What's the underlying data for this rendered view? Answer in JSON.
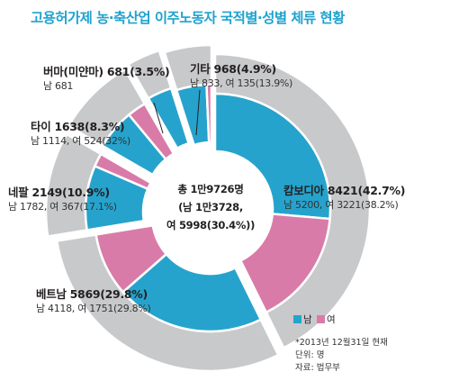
{
  "title": "고용허가제 농·축산업 이주노동자 국적별·성별 체류 현황",
  "center": {
    "line1": "총 1만9726명",
    "line2": "(남 1만3728,",
    "line3": "여 5998(30.4%))"
  },
  "legend": {
    "male": "남",
    "female": "여"
  },
  "notes": {
    "date": "*2013년 12월31일 현재",
    "unit": "단위: 명",
    "source": "자료: 법무부"
  },
  "colors": {
    "male": "#26a3cc",
    "female": "#d97ba8",
    "outer": "#c8c9cb",
    "separator": "#ffffff"
  },
  "labels": {
    "cambodia": {
      "name": "캄보디아 8421(42.7%)",
      "sub": "남 5200, 여 3221(38.2%)"
    },
    "vietnam": {
      "name": "베트남 5869(29.8%)",
      "sub": "남 4118, 여 1751(29.8%)"
    },
    "nepal": {
      "name": "네팔 2149(10.9%)",
      "sub": "남 1782, 여 367(17.1%)"
    },
    "thailand": {
      "name": "타이 1638(8.3%)",
      "sub": "남 1114, 여 524(32%)"
    },
    "myanmar": {
      "name": "버마(미얀마) 681(3.5%)",
      "sub": "남 681"
    },
    "other": {
      "name": "기타 968(4.9%)",
      "sub": "남 833, 여 135(13.9%)"
    }
  },
  "chart_data": {
    "type": "pie",
    "variant": "double ring (outer: total by nationality, inner: male/female)",
    "total": 19726,
    "total_male": 13728,
    "total_female": 5998,
    "series": [
      {
        "name": "캄보디아",
        "total": 8421,
        "percent": 42.7,
        "male": 5200,
        "female": 3221,
        "female_percent": 38.2
      },
      {
        "name": "베트남",
        "total": 5869,
        "percent": 29.8,
        "male": 4118,
        "female": 1751,
        "female_percent": 29.8
      },
      {
        "name": "네팔",
        "total": 2149,
        "percent": 10.9,
        "male": 1782,
        "female": 367,
        "female_percent": 17.1
      },
      {
        "name": "타이",
        "total": 1638,
        "percent": 8.3,
        "male": 1114,
        "female": 524,
        "female_percent": 32
      },
      {
        "name": "버마(미얀마)",
        "total": 681,
        "percent": 3.5,
        "male": 681,
        "female": 0
      },
      {
        "name": "기타",
        "total": 968,
        "percent": 4.9,
        "male": 833,
        "female": 135,
        "female_percent": 13.9
      }
    ]
  }
}
